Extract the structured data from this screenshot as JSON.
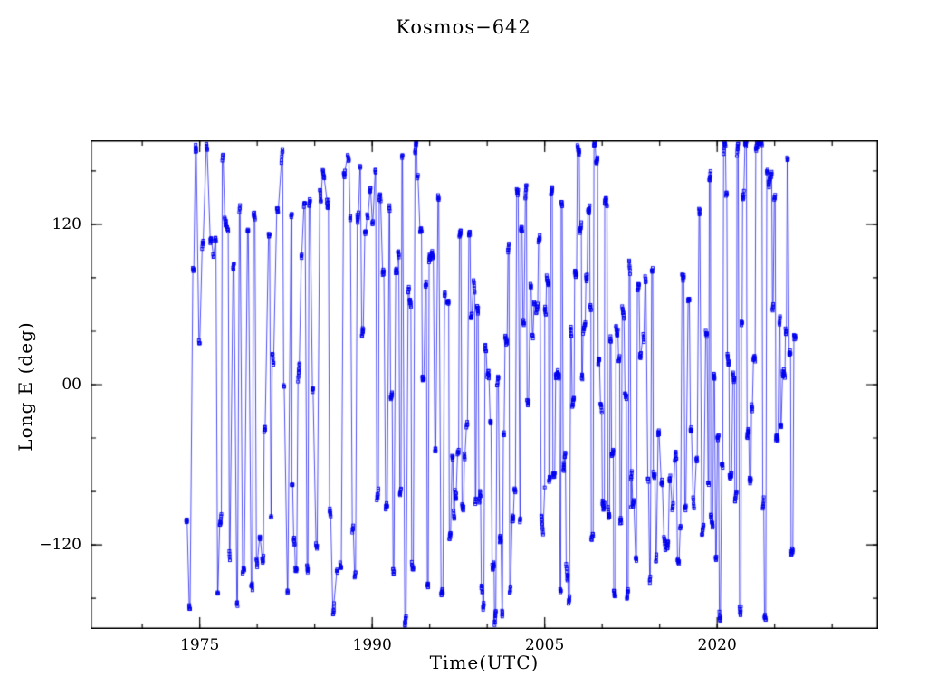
{
  "chart_data": {
    "type": "scatter",
    "title": "Kosmos−642",
    "xlabel": "Time(UTC)",
    "ylabel": "Long E (deg)",
    "xlim": [
      1965.5,
      2034.0
    ],
    "ylim": [
      -183,
      183
    ],
    "xticks": [
      1975,
      1990,
      2005,
      2020
    ],
    "xtick_labels": [
      "1975",
      "1990",
      "2005",
      "2020"
    ],
    "x_minor_step": 5,
    "yticks": [
      120,
      0,
      -120
    ],
    "ytick_labels": [
      "120",
      "00",
      "−120"
    ],
    "y_minor_step": 40,
    "grid": false,
    "legend": null,
    "marker": "open-square",
    "marker_size": 3,
    "marker_color": "#0000ee",
    "line_color": "#0000ee",
    "frame_color": "#000000",
    "seed": 42,
    "segments": [
      {
        "t0": 1973.8,
        "t1": 1983.0,
        "bursts_per_year": 6,
        "burst_len": [
          3,
          9
        ],
        "bands": [
          {
            "range": [
              150,
              182
            ],
            "w": 0.15
          },
          {
            "range": [
              85,
              140
            ],
            "w": 0.3
          },
          {
            "range": [
              -168,
              -88
            ],
            "w": 0.43
          },
          {
            "range": [
              -80,
              80
            ],
            "w": 0.12
          }
        ]
      },
      {
        "t0": 1983.0,
        "t1": 1990.0,
        "bursts_per_year": 7,
        "burst_len": [
          3,
          9
        ],
        "bands": [
          {
            "range": [
              108,
              182
            ],
            "w": 0.4
          },
          {
            "range": [
              -172,
              -75
            ],
            "w": 0.45
          },
          {
            "range": [
              -70,
              100
            ],
            "w": 0.15
          }
        ]
      },
      {
        "t0": 1990.0,
        "t1": 1996.5,
        "bursts_per_year": 9,
        "burst_len": [
          4,
          10
        ],
        "bands": [
          {
            "range": [
              58,
              182
            ],
            "w": 0.45
          },
          {
            "range": [
              -182,
              -52
            ],
            "w": 0.43
          },
          {
            "range": [
              -50,
              55
            ],
            "w": 0.12
          }
        ]
      },
      {
        "t0": 1996.5,
        "t1": 2005.0,
        "bursts_per_year": 12,
        "burst_len": [
          4,
          10
        ],
        "bands": [
          {
            "range": [
              25,
              182
            ],
            "w": 0.4
          },
          {
            "range": [
              -182,
              -40
            ],
            "w": 0.42
          },
          {
            "range": [
              -38,
              22
            ],
            "w": 0.18
          }
        ]
      },
      {
        "t0": 2005.0,
        "t1": 2012.5,
        "bursts_per_year": 22,
        "burst_len": [
          5,
          12
        ],
        "bands": [
          {
            "range": [
              -182,
              182
            ],
            "w": 1.0
          }
        ]
      },
      {
        "t0": 2012.5,
        "t1": 2019.3,
        "bursts_per_year": 9,
        "burst_len": [
          4,
          9
        ],
        "bands": [
          {
            "range": [
              -155,
              -30
            ],
            "w": 0.48
          },
          {
            "range": [
              8,
              88
            ],
            "w": 0.27
          },
          {
            "range": [
              95,
              182
            ],
            "w": 0.06
          },
          {
            "range": [
              -182,
              182
            ],
            "w": 0.19
          }
        ]
      },
      {
        "t0": 2019.3,
        "t1": 2026.8,
        "bursts_per_year": 16,
        "burst_len": [
          5,
          12
        ],
        "bands": [
          {
            "range": [
              138,
              182
            ],
            "w": 0.33
          },
          {
            "range": [
              -182,
              -22
            ],
            "w": 0.5
          },
          {
            "range": [
              -20,
              70
            ],
            "w": 0.17
          }
        ]
      }
    ]
  }
}
